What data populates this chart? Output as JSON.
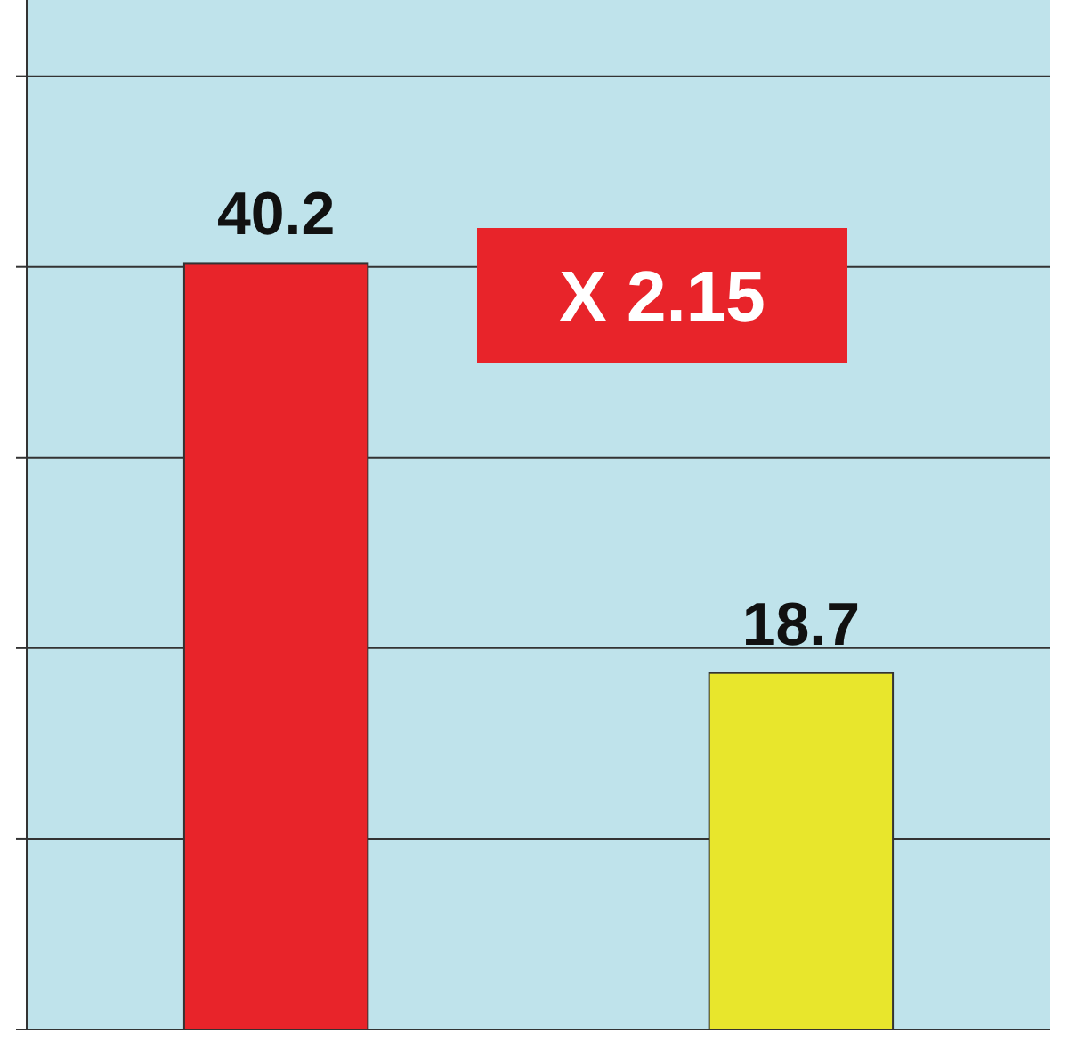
{
  "chart_data": {
    "type": "bar",
    "categories": [
      null,
      null
    ],
    "values": [
      40.2,
      18.7
    ],
    "colors": [
      "#e8242a",
      "#e8e62c"
    ],
    "data_labels": true,
    "ylim": [
      0,
      54
    ],
    "yticks": [
      {
        "value": 0,
        "label": null
      },
      {
        "value": 10,
        "label": null
      },
      {
        "value": 20,
        "label": null
      },
      {
        "value": 30,
        "label": null
      },
      {
        "value": 40,
        "label": null
      },
      {
        "value": 50,
        "label": null
      }
    ],
    "grid": "y",
    "annotations": [
      "X 2.15"
    ]
  }
}
